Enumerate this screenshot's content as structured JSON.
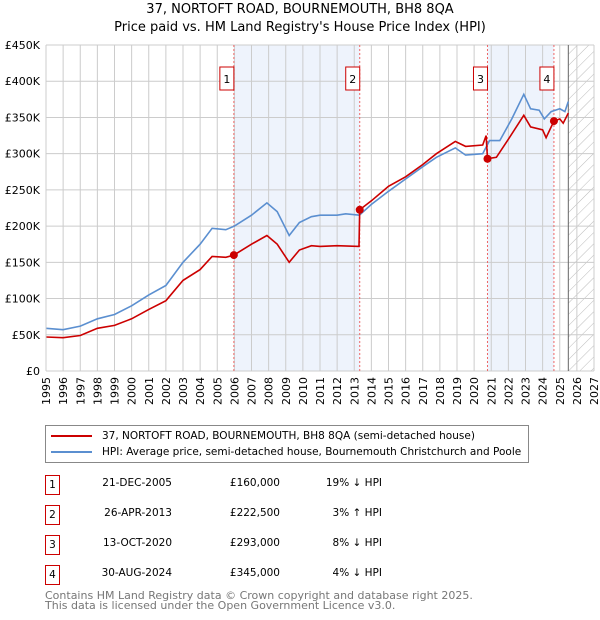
{
  "title": "37, NORTOFT ROAD, BOURNEMOUTH, BH8 8QA",
  "subtitle": "Price paid vs. HM Land Registry's House Price Index (HPI)",
  "chart_data": {
    "type": "line",
    "xlim": [
      1995,
      2027
    ],
    "ylim": [
      0,
      450000
    ],
    "yticks": [
      0,
      50000,
      100000,
      150000,
      200000,
      250000,
      300000,
      350000,
      400000,
      450000
    ],
    "ytick_labels": [
      "£0",
      "£50K",
      "£100K",
      "£150K",
      "£200K",
      "£250K",
      "£300K",
      "£350K",
      "£400K",
      "£450K"
    ],
    "xtick_labels": [
      "1995",
      "1996",
      "1997",
      "1998",
      "1999",
      "2000",
      "2001",
      "2002",
      "2003",
      "2004",
      "2005",
      "2006",
      "2007",
      "2008",
      "2009",
      "2010",
      "2011",
      "2012",
      "2013",
      "2014",
      "2015",
      "2016",
      "2017",
      "2018",
      "2019",
      "2020",
      "2021",
      "2022",
      "2023",
      "2024",
      "2025",
      "2026",
      "2027"
    ],
    "grid": true,
    "shaded_ranges": [
      [
        2005.97,
        2013.32
      ],
      [
        2020.78,
        2024.66
      ]
    ],
    "forecast_hatch_from": 2025.5,
    "series": [
      {
        "name": "37, NORTOFT ROAD, BOURNEMOUTH, BH8 8QA (semi-detached house)",
        "color": "#cc0000",
        "x": [
          1995,
          1996,
          1997,
          1998,
          1999,
          2000,
          2001,
          2002,
          2003,
          2004,
          2004.7,
          2005.5,
          2005.97,
          2007,
          2007.9,
          2008.5,
          2009.2,
          2009.8,
          2010.5,
          2011,
          2012,
          2013.28,
          2013.32,
          2014,
          2015,
          2016,
          2017,
          2017.8,
          2018.9,
          2019.5,
          2020.5,
          2020.7,
          2020.78,
          2021.3,
          2022,
          2022.9,
          2023.3,
          2024,
          2024.2,
          2024.66,
          2025,
          2025.2,
          2025.5
        ],
        "y": [
          47000,
          46000,
          49000,
          59000,
          63000,
          72000,
          85000,
          97000,
          125000,
          140000,
          158000,
          157000,
          160000,
          175000,
          187000,
          175000,
          150000,
          167000,
          173000,
          172000,
          173000,
          172000,
          222500,
          235000,
          255000,
          268000,
          285000,
          300000,
          317000,
          310000,
          312000,
          325000,
          293000,
          295000,
          320000,
          353000,
          337000,
          333000,
          322000,
          345000,
          348000,
          342000,
          356000
        ]
      },
      {
        "name": "HPI: Average price, semi-detached house, Bournemouth Christchurch and Poole",
        "color": "#5b8fd0",
        "x": [
          1995,
          1996,
          1997,
          1998,
          1999,
          2000,
          2001,
          2002,
          2003,
          2004,
          2004.7,
          2005.5,
          2006,
          2007,
          2007.9,
          2008.5,
          2009.2,
          2009.8,
          2010.5,
          2011,
          2012,
          2012.5,
          2013.3,
          2014,
          2015,
          2016,
          2017,
          2017.8,
          2018.9,
          2019.5,
          2020.5,
          2020.9,
          2021.5,
          2022.2,
          2022.9,
          2023.3,
          2023.8,
          2024.1,
          2024.5,
          2025,
          2025.3,
          2025.5
        ],
        "y": [
          59000,
          57000,
          62000,
          72000,
          78000,
          90000,
          105000,
          118000,
          150000,
          175000,
          197000,
          195000,
          200000,
          215000,
          232000,
          220000,
          187000,
          205000,
          213000,
          215000,
          215000,
          217000,
          215000,
          230000,
          248000,
          265000,
          282000,
          295000,
          308000,
          298000,
          300000,
          318000,
          318000,
          348000,
          382000,
          362000,
          360000,
          348000,
          358000,
          362000,
          358000,
          372000
        ]
      }
    ],
    "sales": [
      {
        "n": "1",
        "x": 2005.97,
        "y": 160000
      },
      {
        "n": "2",
        "x": 2013.32,
        "y": 222500
      },
      {
        "n": "3",
        "x": 2020.78,
        "y": 293000
      },
      {
        "n": "4",
        "x": 2024.66,
        "y": 345000
      }
    ]
  },
  "legend": [
    {
      "label": "37, NORTOFT ROAD, BOURNEMOUTH, BH8 8QA (semi-detached house)",
      "color": "#cc0000"
    },
    {
      "label": "HPI: Average price, semi-detached house, Bournemouth Christchurch and Poole",
      "color": "#5b8fd0"
    }
  ],
  "table": [
    {
      "n": "1",
      "date": "21-DEC-2005",
      "price": "£160,000",
      "hpi": "19% ↓ HPI"
    },
    {
      "n": "2",
      "date": "26-APR-2013",
      "price": "£222,500",
      "hpi": "3% ↑ HPI"
    },
    {
      "n": "3",
      "date": "13-OCT-2020",
      "price": "£293,000",
      "hpi": "8% ↓ HPI"
    },
    {
      "n": "4",
      "date": "30-AUG-2024",
      "price": "£345,000",
      "hpi": "4% ↓ HPI"
    }
  ],
  "footer": [
    "Contains HM Land Registry data © Crown copyright and database right 2025.",
    "This data is licensed under the Open Government Licence v3.0."
  ]
}
